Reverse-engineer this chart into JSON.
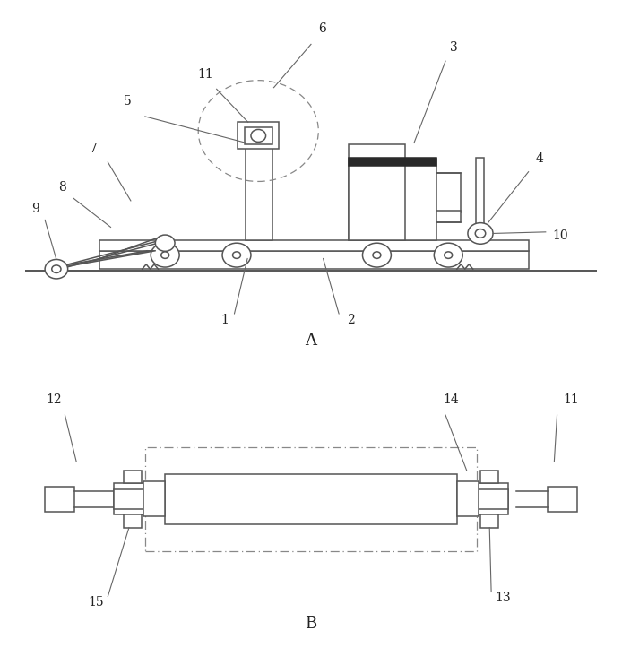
{
  "line_color": "#555555",
  "label_color": "#222222",
  "fig_width": 6.94,
  "fig_height": 7.23,
  "label_fontsize": 10,
  "view_label_fontsize": 12
}
